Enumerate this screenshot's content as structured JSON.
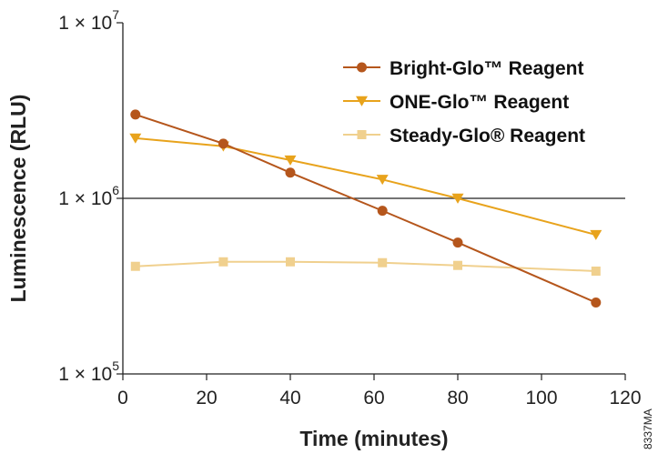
{
  "chart_data": {
    "type": "line",
    "xlabel": "Time (minutes)",
    "ylabel": "Luminescence (RLU)",
    "xlim": [
      0,
      120
    ],
    "ylim": [
      100000,
      10000000
    ],
    "yscale": "log",
    "x_ticks": [
      0,
      20,
      40,
      60,
      80,
      100,
      120
    ],
    "y_ticks": [
      {
        "value": 100000,
        "mantissa": "1 × 10",
        "exp": "5"
      },
      {
        "value": 1000000,
        "mantissa": "1 × 10",
        "exp": "6"
      },
      {
        "value": 10000000,
        "mantissa": "1 × 10",
        "exp": "7"
      }
    ],
    "gridline_at": 1000000,
    "legend_position": "top-right",
    "series": [
      {
        "name": "Bright-Glo™ Reagent",
        "color": "#b5561c",
        "marker": "circle",
        "x": [
          3,
          24,
          40,
          62,
          80,
          113
        ],
        "y": [
          3000000,
          2050000,
          1400000,
          850000,
          560000,
          255000
        ]
      },
      {
        "name": "ONE-Glo™ Reagent",
        "color": "#e8a31c",
        "marker": "triangle-down",
        "x": [
          3,
          24,
          40,
          62,
          80,
          113
        ],
        "y": [
          2200000,
          1980000,
          1650000,
          1280000,
          1000000,
          620000
        ]
      },
      {
        "name": "Steady-Glo® Reagent",
        "color": "#f0d08e",
        "marker": "square",
        "x": [
          3,
          24,
          40,
          62,
          80,
          113
        ],
        "y": [
          410000,
          435000,
          435000,
          430000,
          415000,
          385000
        ]
      }
    ],
    "figure_id": "8337MA"
  }
}
